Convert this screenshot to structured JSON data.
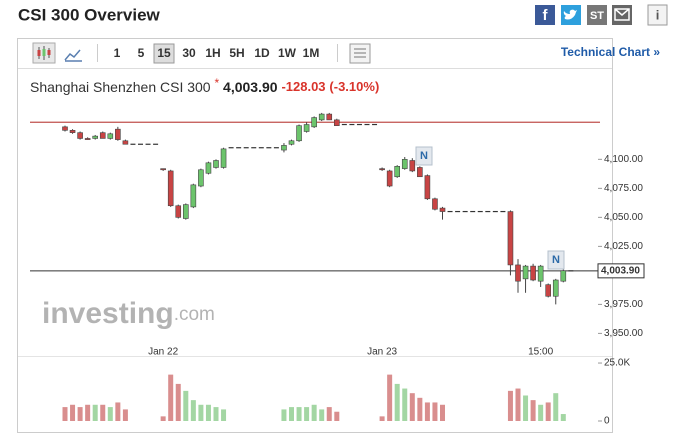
{
  "header": {
    "title": "CSI 300 Overview",
    "icons": [
      "f",
      "ST",
      "i"
    ]
  },
  "toolbar": {
    "intervals": [
      "1",
      "5",
      "15",
      "30",
      "1H",
      "5H",
      "1D",
      "1W",
      "1M"
    ],
    "selected": "15",
    "link": "Technical Chart »"
  },
  "quote": {
    "name": "Shanghai Shenzhen CSI 300",
    "marker": "*",
    "price": "4,003.90",
    "change": "-128.03",
    "change_pct": "(-3.10%)"
  },
  "watermark": {
    "brand": "investing",
    "suffix": ".com"
  },
  "news_markers": [
    "N",
    "N"
  ],
  "chart_data": {
    "type": "candlestick",
    "categories": [
      null,
      null,
      null,
      null,
      null,
      null,
      null,
      null,
      null,
      null,
      null,
      null,
      null,
      "Jan 22",
      null,
      null,
      null,
      null,
      null,
      null,
      null,
      null,
      null,
      null,
      null,
      null,
      null,
      null,
      null,
      null,
      null,
      null,
      null,
      null,
      null,
      null,
      null,
      null,
      null,
      null,
      null,
      null,
      "Jan 23",
      null,
      null,
      null,
      null,
      null,
      null,
      null,
      null,
      null,
      null,
      null,
      null,
      null,
      null,
      null,
      null,
      null,
      null,
      null,
      null,
      "15:00",
      null,
      null,
      null,
      null
    ],
    "open": [
      4128,
      4125,
      4123,
      4118,
      4118,
      4123,
      4118,
      4126,
      4116,
      4113,
      4113,
      4113,
      4113,
      4092,
      4090,
      4060,
      4049,
      4059,
      4077,
      4088,
      4093,
      4093,
      4110,
      4110,
      4110,
      4110,
      4110,
      4110,
      4110,
      4108,
      4113,
      4116,
      4124,
      4128,
      4134,
      4139,
      4134,
      4130,
      4130,
      4130,
      4130,
      4130,
      4092,
      4090,
      4085,
      4092,
      4099,
      4093,
      4086,
      4066,
      4058,
      4055,
      4055,
      4055,
      4055,
      4055,
      4055,
      4055,
      4055,
      4055,
      4009,
      3997,
      4008,
      3995,
      3992,
      3982,
      3995,
      4003.9
    ],
    "high": [
      4129,
      4126,
      4124,
      4119,
      4121,
      4124,
      4123,
      4128,
      4117,
      4113,
      4113,
      4113,
      4113,
      4092,
      4091,
      4061,
      4062,
      4079,
      4092,
      4098,
      4100,
      4110,
      4110,
      4110,
      4110,
      4110,
      4110,
      4110,
      4110,
      4114,
      4117,
      4130,
      4132,
      4137,
      4140,
      4140,
      4135,
      4130,
      4130,
      4130,
      4130,
      4130,
      4093,
      4091,
      4095,
      4102,
      4101,
      4094,
      4087,
      4067,
      4059,
      4055,
      4055,
      4055,
      4055,
      4055,
      4055,
      4055,
      4055,
      4056,
      4014,
      4009,
      4010,
      4009,
      3993,
      3997,
      4005,
      4003.9
    ],
    "low": [
      4124,
      4122,
      4117,
      4117,
      4117,
      4118,
      4117,
      4116,
      4113,
      4113,
      4113,
      4113,
      4113,
      4090,
      4059,
      4049,
      4048,
      4058,
      4076,
      4087,
      4092,
      4092,
      4110,
      4110,
      4110,
      4110,
      4110,
      4110,
      4110,
      4106,
      4112,
      4115,
      4123,
      4127,
      4133,
      4134,
      4129,
      4130,
      4130,
      4130,
      4130,
      4130,
      4090,
      4076,
      4084,
      4091,
      4089,
      4085,
      4065,
      4056,
      4048,
      4055,
      4055,
      4055,
      4055,
      4055,
      4055,
      4055,
      4055,
      4000,
      3985,
      3985,
      3995,
      3990,
      3981,
      3975,
      3994,
      4003.9
    ],
    "close": [
      4125,
      4123,
      4118,
      4117,
      4120,
      4118,
      4122,
      4117,
      4113,
      4113,
      4113,
      4113,
      4113,
      4091,
      4060,
      4050,
      4061,
      4078,
      4091,
      4097,
      4099,
      4109,
      4110,
      4110,
      4110,
      4110,
      4110,
      4110,
      4110,
      4112,
      4116,
      4129,
      4130,
      4136,
      4139,
      4134,
      4129,
      4130,
      4130,
      4130,
      4130,
      4130,
      4091,
      4077,
      4094,
      4100,
      4090,
      4085,
      4066,
      4057,
      4055,
      4055,
      4055,
      4055,
      4055,
      4055,
      4055,
      4055,
      4055,
      4009,
      3995,
      4008,
      3996,
      4008,
      3982,
      3996,
      4004,
      4003.9
    ],
    "volume": [
      6000,
      7000,
      6000,
      7000,
      7000,
      7000,
      6000,
      8000,
      5000,
      0,
      0,
      0,
      0,
      2000,
      20000,
      16000,
      13000,
      9000,
      7000,
      7000,
      6000,
      5000,
      0,
      0,
      0,
      0,
      0,
      0,
      0,
      5000,
      6000,
      6000,
      6000,
      7000,
      5000,
      6000,
      4000,
      0,
      0,
      0,
      0,
      0,
      2000,
      20000,
      16000,
      14000,
      12000,
      10000,
      8000,
      8000,
      7000,
      0,
      0,
      0,
      0,
      0,
      0,
      0,
      0,
      13000,
      14000,
      11000,
      9000,
      7000,
      8000,
      12000,
      3000,
      0
    ],
    "ylim": [
      3940,
      4142
    ],
    "yticks": [
      {
        "value": 3950,
        "label": "3,950.00"
      },
      {
        "value": 3975,
        "label": "3,975.00"
      },
      {
        "value": 4025,
        "label": "4,025.00"
      },
      {
        "value": 4050,
        "label": "4,050.00"
      },
      {
        "value": 4075,
        "label": "4,075.00"
      },
      {
        "value": 4100,
        "label": "4,100.00"
      }
    ],
    "last_price": {
      "value": 4003.9,
      "label": "4,003.90"
    },
    "prev_close": 4131.93,
    "volume_ylim": [
      0,
      27000
    ],
    "volume_yticks": [
      {
        "value": 0,
        "label": "0"
      },
      {
        "value": 25000,
        "label": "25.0K"
      }
    ],
    "up_color": "#6cc46c",
    "down_color": "#c84444",
    "volume_up_color": "#a3d6a3",
    "volume_down_color": "#d98e8e",
    "prev_close_color": "#c0504d"
  }
}
